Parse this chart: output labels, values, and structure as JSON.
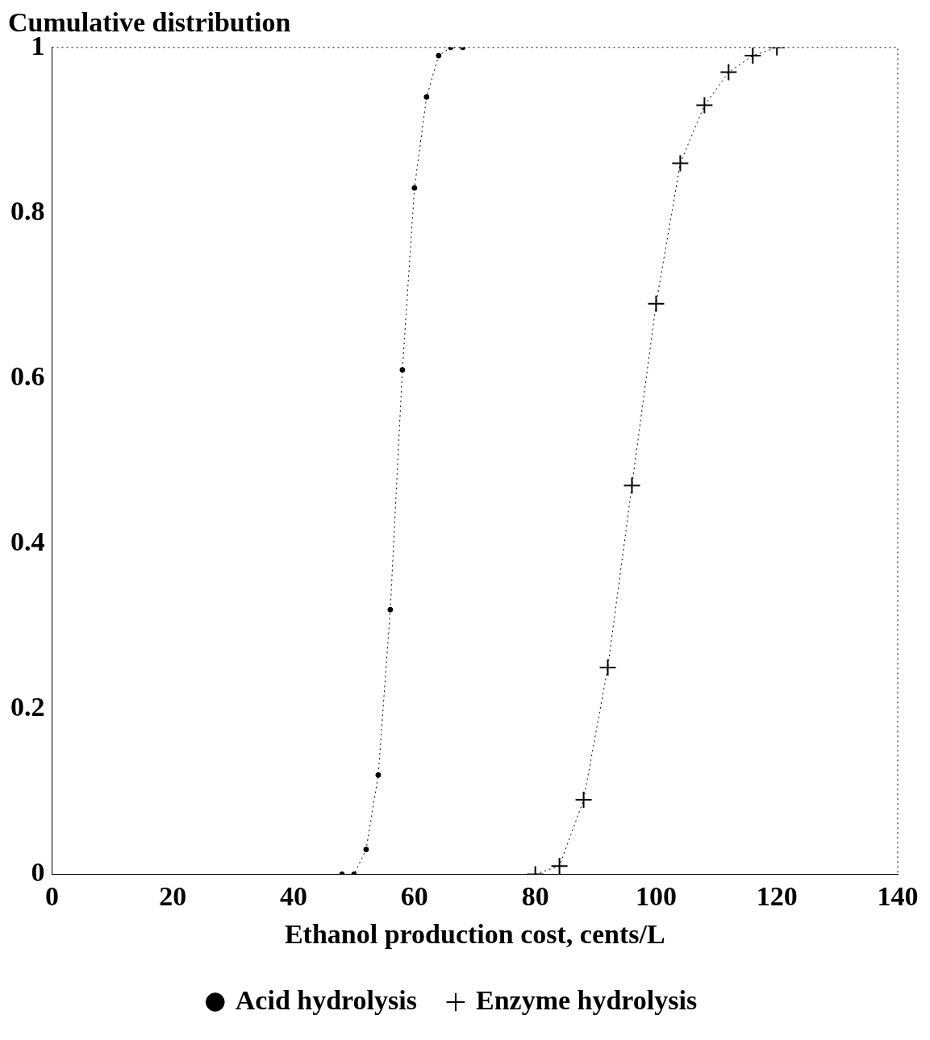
{
  "chart_data": {
    "type": "line",
    "ylabel": "Cumulative distribution",
    "xlabel": "Ethanol production cost, cents/L",
    "xlim": [
      0,
      140
    ],
    "xticks": [
      0,
      20,
      40,
      60,
      80,
      100,
      120,
      140
    ],
    "ylim": [
      0,
      1
    ],
    "yticks": [
      0,
      0.2,
      0.4,
      0.6,
      0.8,
      1
    ],
    "grid": false,
    "legend": "bottom",
    "line_style": "dotted",
    "series": [
      {
        "name": "Acid hydrolysis",
        "color": "#000000",
        "marker": "circle",
        "x": [
          48,
          50,
          52,
          54,
          56,
          58,
          60,
          62,
          64,
          66,
          68
        ],
        "values": [
          0,
          0,
          0.03,
          0.12,
          0.32,
          0.61,
          0.83,
          0.94,
          0.99,
          1,
          1
        ]
      },
      {
        "name": "Enzyme hydrolysis",
        "color": "#000000",
        "marker": "cross",
        "x": [
          80,
          84,
          88,
          92,
          96,
          100,
          104,
          108,
          112,
          116,
          120
        ],
        "values": [
          0,
          0.01,
          0.09,
          0.25,
          0.47,
          0.69,
          0.86,
          0.93,
          0.97,
          0.99,
          1
        ]
      }
    ]
  }
}
